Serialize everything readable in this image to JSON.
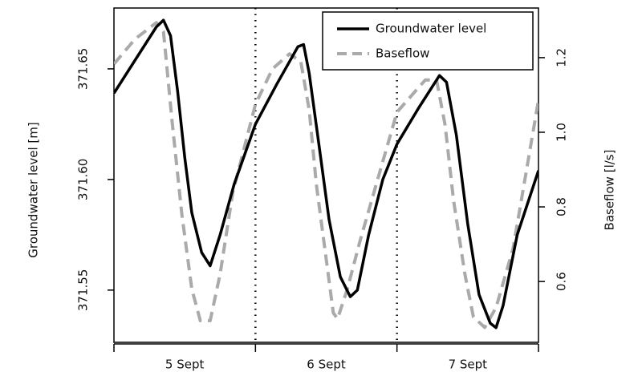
{
  "chart_data": {
    "type": "line",
    "xlim": [
      0,
      3
    ],
    "xticks": [
      {
        "value": 0.5,
        "label": "5 Sept"
      },
      {
        "value": 1.5,
        "label": "6 Sept"
      },
      {
        "value": 2.5,
        "label": "7 Sept"
      }
    ],
    "xtick_marks": [
      0,
      1,
      2,
      3
    ],
    "vlines": [
      1,
      2
    ],
    "ylabel": "Groundwater level [m]",
    "y2label": "Baseflow [l/s]",
    "ylim": [
      371.5264,
      371.6775
    ],
    "yticks": [
      {
        "value": 371.55,
        "label": "371.55"
      },
      {
        "value": 371.6,
        "label": "371.60"
      },
      {
        "value": 371.65,
        "label": "371.65"
      }
    ],
    "y2lim": [
      0.437,
      1.333
    ],
    "y2ticks": [
      0.6,
      0.8,
      {
        "value": 1.0,
        "label": "1.0"
      },
      1.2
    ],
    "legend": "top-right",
    "series": [
      {
        "name": "Groundwater level",
        "color": "#000000",
        "style": "solid",
        "x": [
          0,
          0.15,
          0.3,
          0.35,
          0.4,
          0.45,
          0.5,
          0.55,
          0.62,
          0.68,
          0.75,
          0.85,
          1.0,
          1.15,
          1.3,
          1.34,
          1.38,
          1.45,
          1.52,
          1.6,
          1.67,
          1.72,
          1.8,
          1.9,
          2.0,
          2.15,
          2.3,
          2.35,
          2.42,
          2.5,
          2.58,
          2.66,
          2.7,
          2.75,
          2.85,
          3.0
        ],
        "values": [
          371.639,
          371.654,
          371.669,
          371.672,
          371.665,
          371.64,
          371.61,
          371.585,
          371.567,
          371.561,
          371.575,
          371.598,
          371.625,
          371.643,
          371.66,
          371.661,
          371.648,
          371.615,
          371.582,
          371.556,
          371.547,
          371.55,
          371.575,
          371.6,
          371.616,
          371.632,
          371.647,
          371.644,
          371.62,
          371.58,
          371.548,
          371.535,
          371.533,
          371.543,
          371.575,
          371.604
        ]
      },
      {
        "name": "Baseflow",
        "color": "#aaaaaa",
        "style": "dashed",
        "axis": "y2",
        "x": [
          0,
          0.15,
          0.3,
          0.35,
          0.41,
          0.48,
          0.55,
          0.61,
          0.68,
          0.75,
          0.84,
          1.0,
          1.12,
          1.24,
          1.32,
          1.38,
          1.43,
          1.5,
          1.55,
          1.58,
          1.65,
          1.74,
          2.0,
          2.2,
          2.28,
          2.34,
          2.4,
          2.48,
          2.54,
          2.62,
          2.7,
          2.82,
          3.0
        ],
        "values": [
          1.183,
          1.25,
          1.294,
          1.27,
          1.032,
          0.78,
          0.58,
          0.495,
          0.495,
          0.62,
          0.839,
          1.075,
          1.17,
          1.21,
          1.19,
          1.06,
          0.86,
          0.66,
          0.516,
          0.5,
          0.58,
          0.71,
          1.054,
          1.14,
          1.14,
          1.02,
          0.817,
          0.62,
          0.505,
          0.477,
          0.53,
          0.688,
          1.086
        ]
      }
    ]
  }
}
